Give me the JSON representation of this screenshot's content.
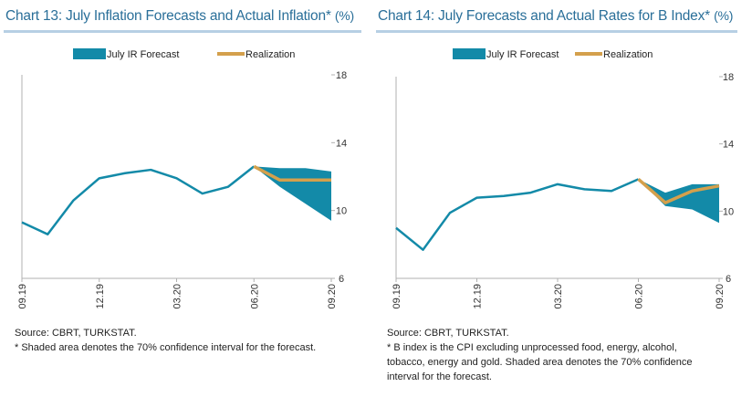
{
  "charts": [
    {
      "id": "left",
      "title": "Chart 13: July Inflation Forecasts and Actual Inflation*",
      "title_unit": "(%)",
      "source": "Source: CBRT, TURKSTAT.",
      "note": "* Shaded area denotes the 70% confidence interval for the forecast."
    },
    {
      "id": "right",
      "title": "Chart 14: July Forecasts and Actual Rates for B Index*",
      "title_unit": "(%)",
      "source": "Source: CBRT, TURKSTAT.",
      "note": "* B index is the CPI excluding unprocessed food, energy, alcohol,\ntobacco, energy and gold. Shaded area denotes the 70% confidence\ninterval for the forecast."
    }
  ],
  "colors": {
    "forecast_band": "#138aa8",
    "realization": "#d4a04c",
    "actual": "#138aa8",
    "axis": "#b0b0b0",
    "title": "#2a6f99"
  },
  "chart_data": [
    {
      "type": "area",
      "title": "Chart 13: July Inflation Forecasts and Actual Inflation* (%)",
      "x_tick_labels": [
        "09.19",
        "12.19",
        "03.20",
        "06.20",
        "09.20"
      ],
      "ylim": [
        6,
        18
      ],
      "y_ticks": [
        6,
        10,
        14,
        18
      ],
      "y_axis_side": "right",
      "grid": false,
      "legend_placement": "top",
      "x": [
        "09.19",
        "10.19",
        "11.19",
        "12.19",
        "01.20",
        "02.20",
        "03.20",
        "04.20",
        "05.20",
        "06.20",
        "07.20",
        "08.20",
        "09.20"
      ],
      "series": [
        {
          "name": "",
          "type": "line",
          "values": [
            9.3,
            8.6,
            10.6,
            11.9,
            12.2,
            12.4,
            11.9,
            11.0,
            11.4,
            12.6,
            null,
            null,
            null
          ]
        },
        {
          "name": "July IR Forecast",
          "type": "band",
          "x": [
            "06.20",
            "07.20",
            "08.20",
            "09.20"
          ],
          "upper": [
            12.6,
            12.5,
            12.5,
            12.3
          ],
          "lower": [
            12.6,
            11.4,
            10.4,
            9.4
          ]
        },
        {
          "name": "Realization",
          "type": "line",
          "x": [
            "06.20",
            "07.20",
            "08.20",
            "09.20"
          ],
          "values": [
            12.6,
            11.8,
            11.8,
            11.8
          ]
        }
      ]
    },
    {
      "type": "area",
      "title": "Chart 14: July Forecasts and Actual Rates for B Index* (%)",
      "x_tick_labels": [
        "09.19",
        "12.19",
        "03.20",
        "06.20",
        "09.20"
      ],
      "ylim": [
        6,
        18
      ],
      "y_ticks": [
        6,
        10,
        14,
        18
      ],
      "y_axis_side": "right",
      "grid": false,
      "legend_placement": "top",
      "x": [
        "09.19",
        "10.19",
        "11.19",
        "12.19",
        "01.20",
        "02.20",
        "03.20",
        "04.20",
        "05.20",
        "06.20",
        "07.20",
        "08.20",
        "09.20"
      ],
      "series": [
        {
          "name": "",
          "type": "line",
          "values": [
            9.0,
            7.7,
            9.9,
            10.8,
            10.9,
            11.1,
            11.6,
            11.3,
            11.2,
            11.9,
            null,
            null,
            null
          ]
        },
        {
          "name": "July IR Forecast",
          "type": "band",
          "x": [
            "06.20",
            "07.20",
            "08.20",
            "09.20"
          ],
          "upper": [
            11.9,
            11.1,
            11.6,
            11.6
          ],
          "lower": [
            11.9,
            10.3,
            10.1,
            9.3
          ]
        },
        {
          "name": "Realization",
          "type": "line",
          "x": [
            "06.20",
            "07.20",
            "08.20",
            "09.20"
          ],
          "values": [
            11.9,
            10.5,
            11.2,
            11.5
          ]
        }
      ]
    }
  ]
}
